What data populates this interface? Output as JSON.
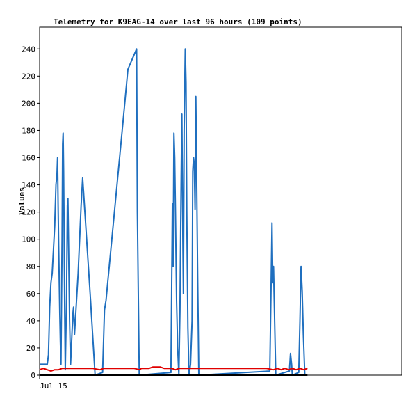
{
  "chart_data": {
    "type": "line",
    "title": "Telemetry for K9EAG-14 over last 96 hours (109 points)",
    "xlabel": "",
    "ylabel": "Values",
    "x_tick_labels": [
      "Jul 15"
    ],
    "y_ticks": [
      0,
      20,
      40,
      60,
      80,
      100,
      120,
      140,
      160,
      180,
      200,
      220,
      240
    ],
    "xlim": [
      0,
      96
    ],
    "ylim": [
      0,
      256
    ],
    "grid": false,
    "legend": "none",
    "colors": {
      "blue": "#1f6fbf",
      "red": "#e00000",
      "black": "#000000"
    },
    "series": [
      {
        "color": "#1f6fbf",
        "points": [
          [
            0.0,
            8
          ],
          [
            2.02,
            8
          ],
          [
            2.34,
            15
          ],
          [
            2.67,
            50
          ],
          [
            3.0,
            68
          ],
          [
            3.33,
            75
          ],
          [
            4.0,
            110
          ],
          [
            4.33,
            140
          ],
          [
            4.6,
            148
          ],
          [
            4.75,
            160
          ],
          [
            4.9,
            125
          ],
          [
            5.05,
            95
          ],
          [
            5.2,
            70
          ],
          [
            5.35,
            45
          ],
          [
            5.5,
            25
          ],
          [
            5.65,
            8
          ],
          [
            5.95,
            100
          ],
          [
            6.1,
            170
          ],
          [
            6.22,
            178
          ],
          [
            6.35,
            150
          ],
          [
            6.5,
            100
          ],
          [
            6.65,
            45
          ],
          [
            6.8,
            4
          ],
          [
            7.15,
            60
          ],
          [
            7.35,
            125
          ],
          [
            7.5,
            130
          ],
          [
            7.7,
            90
          ],
          [
            7.95,
            40
          ],
          [
            8.2,
            8
          ],
          [
            8.8,
            45
          ],
          [
            9.0,
            50
          ],
          [
            9.25,
            30
          ],
          [
            10.2,
            75
          ],
          [
            11.0,
            125
          ],
          [
            11.4,
            145
          ],
          [
            12.0,
            120
          ],
          [
            13.5,
            55
          ],
          [
            14.7,
            0
          ],
          [
            16.7,
            2
          ],
          [
            17.2,
            48
          ],
          [
            17.6,
            55
          ],
          [
            22.5,
            198
          ],
          [
            23.4,
            225
          ],
          [
            25.7,
            240
          ],
          [
            25.9,
            120
          ],
          [
            26.4,
            0
          ],
          [
            34.8,
            2
          ],
          [
            35.0,
            60
          ],
          [
            35.2,
            126
          ],
          [
            35.4,
            80
          ],
          [
            35.6,
            178
          ],
          [
            35.8,
            160
          ],
          [
            36.0,
            120
          ],
          [
            36.3,
            55
          ],
          [
            36.6,
            20
          ],
          [
            36.9,
            0
          ],
          [
            37.2,
            48
          ],
          [
            37.5,
            140
          ],
          [
            37.7,
            192
          ],
          [
            37.9,
            120
          ],
          [
            38.1,
            60
          ],
          [
            38.3,
            180
          ],
          [
            38.6,
            240
          ],
          [
            38.8,
            215
          ],
          [
            39.0,
            120
          ],
          [
            39.3,
            35
          ],
          [
            39.6,
            0
          ],
          [
            40.0,
            8
          ],
          [
            40.4,
            40
          ],
          [
            40.6,
            150
          ],
          [
            40.8,
            160
          ],
          [
            41.0,
            155
          ],
          [
            41.2,
            122
          ],
          [
            41.4,
            205
          ],
          [
            41.6,
            150
          ],
          [
            41.9,
            70
          ],
          [
            42.2,
            0
          ],
          [
            61.0,
            3
          ],
          [
            61.3,
            56
          ],
          [
            61.6,
            112
          ],
          [
            61.8,
            68
          ],
          [
            62.0,
            80
          ],
          [
            62.3,
            40
          ],
          [
            62.6,
            0
          ],
          [
            66.2,
            3
          ],
          [
            66.5,
            16
          ],
          [
            66.8,
            8
          ],
          [
            67.0,
            0
          ],
          [
            68.7,
            2
          ],
          [
            69.0,
            40
          ],
          [
            69.3,
            80
          ],
          [
            69.6,
            62
          ],
          [
            69.9,
            30
          ],
          [
            70.3,
            0
          ]
        ]
      },
      {
        "color": "#e00000",
        "points": [
          [
            0.0,
            4
          ],
          [
            1.0,
            5
          ],
          [
            2.0,
            4
          ],
          [
            3.0,
            3
          ],
          [
            4.0,
            4
          ],
          [
            5.0,
            4
          ],
          [
            6.0,
            5
          ],
          [
            14.0,
            5
          ],
          [
            16.0,
            4
          ],
          [
            17.0,
            5
          ],
          [
            24.0,
            5
          ],
          [
            25.0,
            5
          ],
          [
            26.5,
            4
          ],
          [
            27.0,
            5
          ],
          [
            28.0,
            5
          ],
          [
            29.0,
            5
          ],
          [
            30.0,
            6
          ],
          [
            32.0,
            6
          ],
          [
            33.0,
            5
          ],
          [
            34.0,
            5
          ],
          [
            35.0,
            5
          ],
          [
            36.0,
            4
          ],
          [
            37.0,
            5
          ],
          [
            50.0,
            5
          ],
          [
            60.0,
            5
          ],
          [
            62.0,
            4
          ],
          [
            63.0,
            5
          ],
          [
            64.0,
            4
          ],
          [
            65.0,
            5
          ],
          [
            66.0,
            4
          ],
          [
            67.0,
            5
          ],
          [
            68.0,
            4
          ],
          [
            69.0,
            5
          ],
          [
            70.0,
            4
          ],
          [
            71.0,
            5
          ]
        ]
      },
      {
        "color": "#000000",
        "points": [
          [
            0.0,
            0
          ],
          [
            71.0,
            0
          ]
        ]
      }
    ]
  }
}
